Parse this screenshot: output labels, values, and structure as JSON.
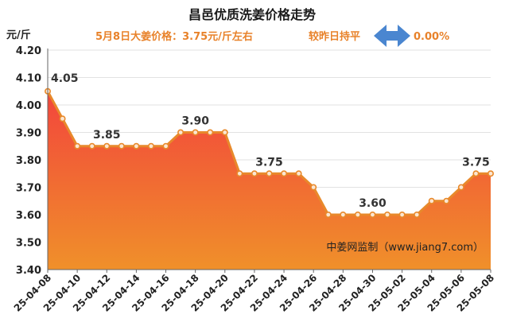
{
  "chart_data": {
    "type": "area",
    "title": "昌邑优质洗姜价格走势",
    "price_line": "5月8日大姜价格：3.75元/斤左右",
    "change_label": "较昨日持平",
    "change_value": "0.00%",
    "ylabel": "元/斤",
    "watermark": "中姜网监制（www.jiang7.com）",
    "ylim": [
      3.4,
      4.2
    ],
    "yticks": [
      "3.40",
      "3.50",
      "3.60",
      "3.70",
      "3.80",
      "3.90",
      "4.00",
      "4.10",
      "4.20"
    ],
    "grid": true,
    "colors": {
      "line": "#e8892b",
      "fill_top": "#f2453c",
      "fill_bottom": "#f0902a",
      "arrow": "#4a86d0",
      "info": "#e8822a"
    },
    "x": [
      "25-04-08",
      "25-04-09",
      "25-04-10",
      "25-04-11",
      "25-04-12",
      "25-04-13",
      "25-04-14",
      "25-04-15",
      "25-04-16",
      "25-04-17",
      "25-04-18",
      "25-04-19",
      "25-04-20",
      "25-04-21",
      "25-04-22",
      "25-04-23",
      "25-04-24",
      "25-04-25",
      "25-04-26",
      "25-04-27",
      "25-04-28",
      "25-04-29",
      "25-04-30",
      "25-05-01",
      "25-05-02",
      "25-05-03",
      "25-05-04",
      "25-05-05",
      "25-05-06",
      "25-05-07",
      "25-05-08"
    ],
    "xticks": [
      "25-04-08",
      "25-04-10",
      "25-04-12",
      "25-04-14",
      "25-04-16",
      "25-04-18",
      "25-04-20",
      "25-04-22",
      "25-04-24",
      "25-04-26",
      "25-04-28",
      "25-04-30",
      "25-05-02",
      "25-05-04",
      "25-05-06",
      "25-05-08"
    ],
    "values": [
      4.05,
      3.95,
      3.85,
      3.85,
      3.85,
      3.85,
      3.85,
      3.85,
      3.85,
      3.9,
      3.9,
      3.9,
      3.9,
      3.75,
      3.75,
      3.75,
      3.75,
      3.75,
      3.7,
      3.6,
      3.6,
      3.6,
      3.6,
      3.6,
      3.6,
      3.6,
      3.65,
      3.65,
      3.7,
      3.75,
      3.75
    ],
    "data_labels": [
      {
        "index": 0,
        "text": "4.05"
      },
      {
        "index": 4,
        "text": "3.85"
      },
      {
        "index": 10,
        "text": "3.90"
      },
      {
        "index": 15,
        "text": "3.75"
      },
      {
        "index": 22,
        "text": "3.60"
      },
      {
        "index": 29,
        "text": "3.75"
      }
    ]
  }
}
